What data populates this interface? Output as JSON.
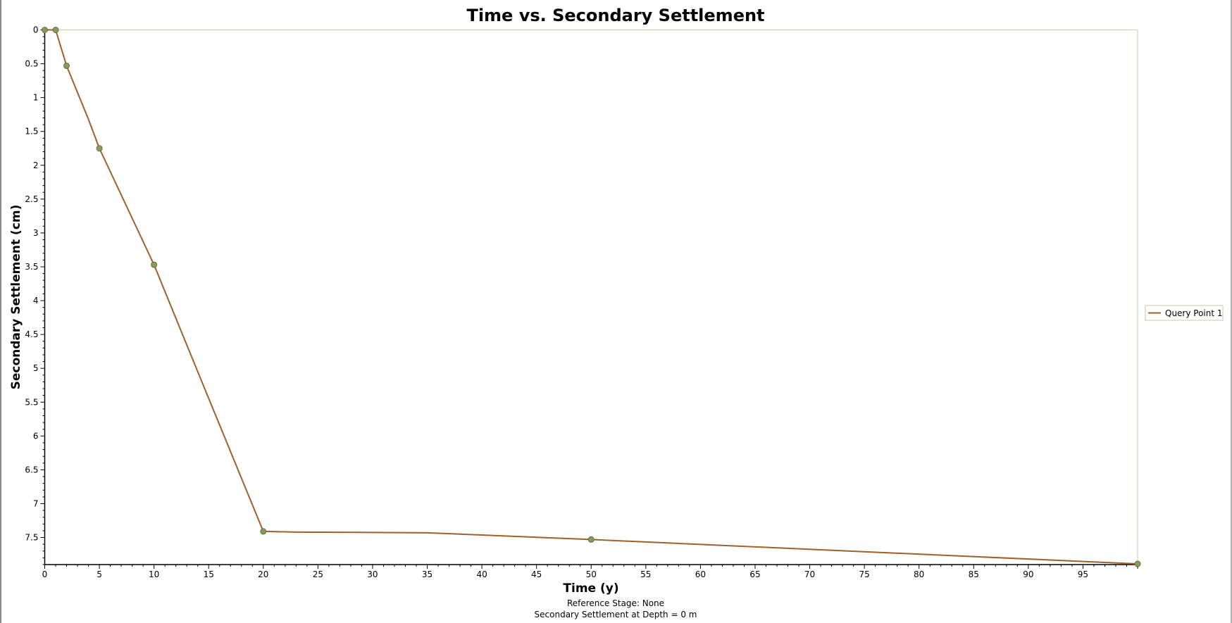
{
  "chart_data": {
    "type": "line",
    "title": "Time vs. Secondary Settlement",
    "xlabel": "Time (y)",
    "ylabel": "Secondary Settlement (cm)",
    "xlim": [
      0,
      100
    ],
    "ylim": [
      0,
      7.9
    ],
    "y_inverted": true,
    "x_ticks": [
      0,
      5,
      10,
      15,
      20,
      25,
      30,
      35,
      40,
      45,
      50,
      55,
      60,
      65,
      70,
      75,
      80,
      85,
      90,
      95
    ],
    "y_ticks": [
      0,
      0.5,
      1,
      1.5,
      2,
      2.5,
      3,
      3.5,
      4,
      4.5,
      5,
      5.5,
      6,
      6.5,
      7,
      7.5
    ],
    "grid": false,
    "legend_position": "right",
    "series": [
      {
        "name": "Query Point 1",
        "color": "#a0602a",
        "marker_color": "#8a9a5b",
        "line": {
          "x": [
            0,
            1,
            2,
            4,
            5,
            10,
            14,
            20,
            23,
            35,
            50,
            100
          ],
          "y": [
            0,
            0,
            0.53,
            1.32,
            1.75,
            3.47,
            5.05,
            7.41,
            7.42,
            7.43,
            7.53,
            7.89
          ]
        },
        "markers": {
          "x": [
            0,
            1,
            2,
            5,
            10,
            20,
            50,
            100
          ],
          "y": [
            0,
            0,
            0.53,
            1.75,
            3.47,
            7.41,
            7.53,
            7.89
          ]
        }
      }
    ],
    "footer": [
      "Reference Stage: None",
      "Secondary Settlement at Depth = 0 m"
    ]
  }
}
